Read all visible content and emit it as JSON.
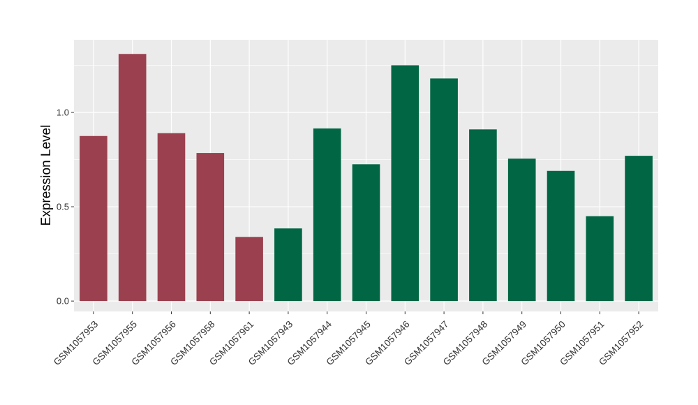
{
  "chart_data": {
    "type": "bar",
    "title": "",
    "xlabel": "",
    "ylabel": "Expression Level",
    "ylim": [
      -0.055,
      1.385
    ],
    "yticks": [
      0.0,
      0.5,
      1.0
    ],
    "ytick_labels": [
      "0.0",
      "0.5",
      "1.0"
    ],
    "grid": true,
    "legend": "none",
    "categories": [
      "GSM1057953",
      "GSM1057955",
      "GSM1057956",
      "GSM1057958",
      "GSM1057961",
      "GSM1057943",
      "GSM1057944",
      "GSM1057945",
      "GSM1057946",
      "GSM1057947",
      "GSM1057948",
      "GSM1057949",
      "GSM1057950",
      "GSM1057951",
      "GSM1057952"
    ],
    "values": [
      0.875,
      1.31,
      0.89,
      0.785,
      0.34,
      0.385,
      0.915,
      0.725,
      1.25,
      1.18,
      0.91,
      0.755,
      0.69,
      0.45,
      0.77
    ],
    "bar_colors": [
      "#9a404f",
      "#9a404f",
      "#9a404f",
      "#9a404f",
      "#9a404f",
      "#006644",
      "#006644",
      "#006644",
      "#006644",
      "#006644",
      "#006644",
      "#006644",
      "#006644",
      "#006644",
      "#006644"
    ],
    "panel_background": "#ebebeb",
    "grid_color": "#ffffff"
  }
}
